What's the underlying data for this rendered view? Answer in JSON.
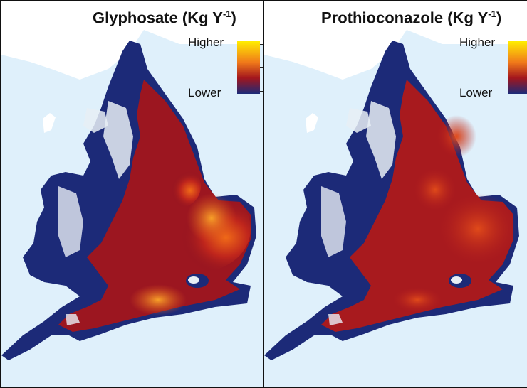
{
  "panels": [
    {
      "title_main": "Glyphosate (Kg Y",
      "title_sup": "-1",
      "title_end": ")",
      "legend_high": "Higher",
      "legend_low": "Lower"
    },
    {
      "title_main": "Prothioconazole (Kg Y",
      "title_sup": "-1",
      "title_end": ")",
      "legend_high": "Higher",
      "legend_low": "Lower"
    }
  ],
  "colors": {
    "sea": "#dff0fb",
    "land_outside": "#ffffff",
    "low": "#1c2a78",
    "mid": "#a3161d",
    "high_orange": "#f07a1a",
    "highest": "#ffee00",
    "upland": "#e8eef5"
  }
}
